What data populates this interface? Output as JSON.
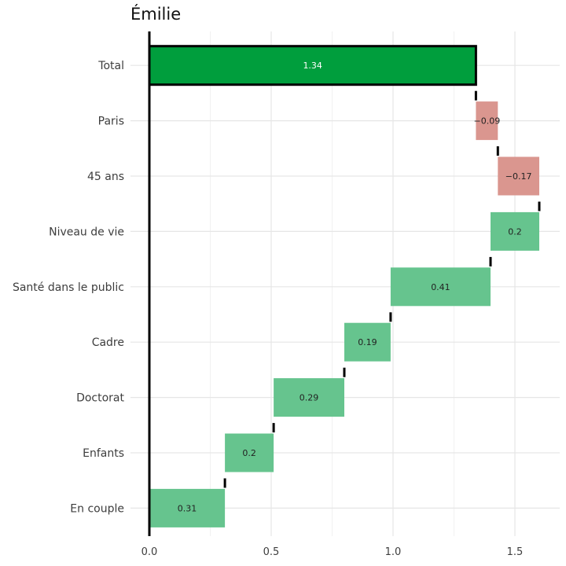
{
  "chart_data": {
    "type": "waterfall",
    "title": "Émilie",
    "xlabel": "",
    "ylabel": "",
    "xlim": [
      0,
      1.7
    ],
    "x_ticks": [
      "0.0",
      "0.5",
      "1.0",
      "1.5"
    ],
    "grid": true,
    "colors": {
      "total": "#009e3d",
      "positive": "#66c48e",
      "negative": "#da968f",
      "total_label": "#ffffff",
      "step_label": "#222222"
    },
    "steps": [
      {
        "label": "Total",
        "value": 1.34,
        "start": 0,
        "end": 1.34,
        "kind": "total",
        "display": "1.34"
      },
      {
        "label": "Paris",
        "value": -0.09,
        "start": 1.43,
        "end": 1.34,
        "kind": "negative",
        "display": "−0.09"
      },
      {
        "label": "45 ans",
        "value": -0.17,
        "start": 1.6,
        "end": 1.43,
        "kind": "negative",
        "display": "−0.17"
      },
      {
        "label": "Niveau de vie",
        "value": 0.2,
        "start": 1.4,
        "end": 1.6,
        "kind": "positive",
        "display": "0.2"
      },
      {
        "label": "Santé dans le public",
        "value": 0.41,
        "start": 0.99,
        "end": 1.4,
        "kind": "positive",
        "display": "0.41"
      },
      {
        "label": "Cadre",
        "value": 0.19,
        "start": 0.8,
        "end": 0.99,
        "kind": "positive",
        "display": "0.19"
      },
      {
        "label": "Doctorat",
        "value": 0.29,
        "start": 0.51,
        "end": 0.8,
        "kind": "positive",
        "display": "0.29"
      },
      {
        "label": "Enfants",
        "value": 0.2,
        "start": 0.31,
        "end": 0.51,
        "kind": "positive",
        "display": "0.2"
      },
      {
        "label": "En couple",
        "value": 0.31,
        "start": 0.0,
        "end": 0.31,
        "kind": "positive",
        "display": "0.31"
      }
    ]
  }
}
